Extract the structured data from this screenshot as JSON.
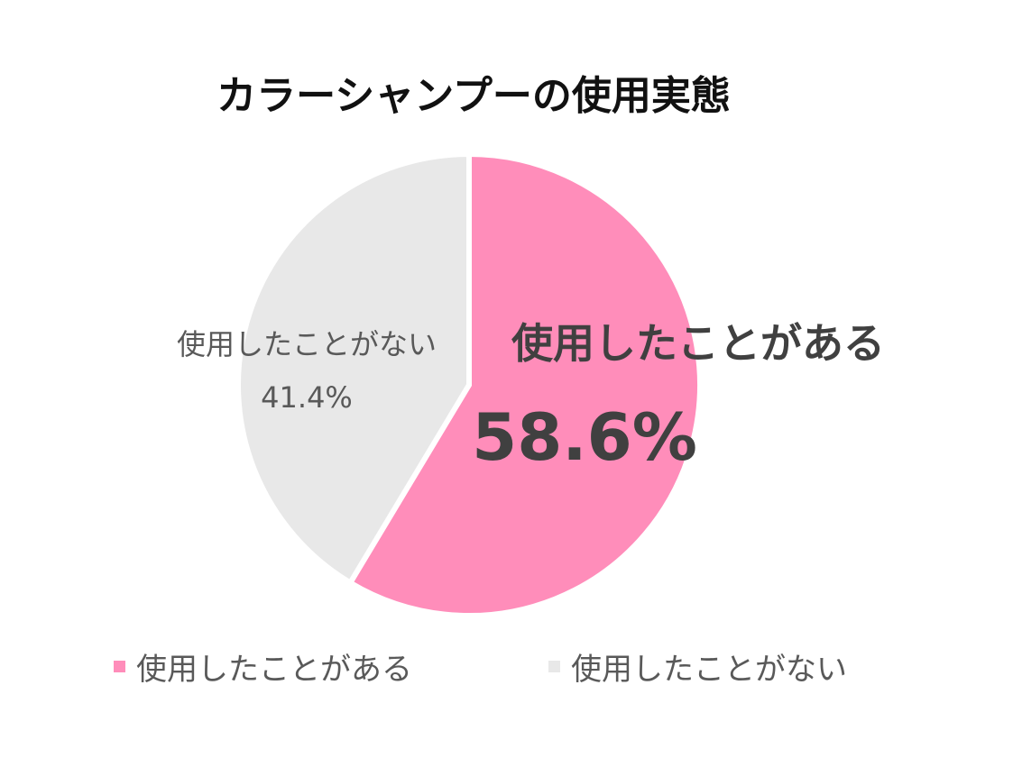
{
  "chart_data": {
    "type": "pie",
    "title": "カラーシャンプーの使用実態",
    "slices": [
      {
        "label": "使用したことがある",
        "value": 58.6,
        "display": "58.6%",
        "color": "#FF8DBA"
      },
      {
        "label": "使用したことがない",
        "value": 41.4,
        "display": "41.4%",
        "color": "#E8E8E8"
      }
    ],
    "start_angle": "12 o'clock",
    "direction": "clockwise",
    "legend": "bottom"
  }
}
